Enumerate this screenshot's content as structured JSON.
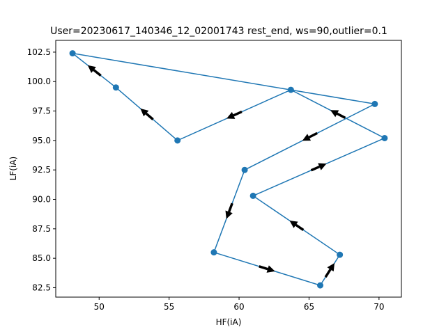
{
  "chart_data": {
    "type": "line",
    "title": "User=20230617_140346_12_02001743 rest_end, ws=90,outlier=0.1",
    "xlabel": "HF(iA)",
    "ylabel": "LF(iA)",
    "xlim": [
      46.9,
      71.6
    ],
    "ylim": [
      81.7,
      103.5
    ],
    "xticks": [
      50,
      55,
      60,
      65,
      70
    ],
    "xtick_labels": [
      "50",
      "55",
      "60",
      "65",
      "70"
    ],
    "yticks": [
      82.5,
      85.0,
      87.5,
      90.0,
      92.5,
      95.0,
      97.5,
      100.0,
      102.5
    ],
    "ytick_labels": [
      "82.5",
      "85.0",
      "87.5",
      "90.0",
      "92.5",
      "95.0",
      "97.5",
      "100.0",
      "102.5"
    ],
    "grid": false,
    "series_color": "#1f77b4",
    "arrow_color": "#000000",
    "series": [
      {
        "x": [
          69.7,
          48.1,
          51.2,
          55.6,
          63.7,
          70.4,
          61.0,
          67.2,
          65.8,
          58.2,
          60.4,
          69.7
        ],
        "y": [
          98.1,
          102.4,
          99.5,
          95.0,
          99.3,
          95.2,
          90.3,
          85.3,
          82.7,
          85.5,
          92.5,
          98.1
        ]
      }
    ],
    "arrows": [
      {
        "from": [
          51.2,
          99.5
        ],
        "to": [
          48.1,
          102.4
        ]
      },
      {
        "from": [
          55.6,
          95.0
        ],
        "to": [
          51.2,
          99.5
        ]
      },
      {
        "from": [
          63.7,
          99.3
        ],
        "to": [
          55.6,
          95.0
        ]
      },
      {
        "from": [
          70.4,
          95.2
        ],
        "to": [
          63.7,
          99.3
        ]
      },
      {
        "from": [
          69.7,
          98.1
        ],
        "to": [
          60.4,
          92.5
        ]
      },
      {
        "from": [
          61.0,
          90.3
        ],
        "to": [
          70.4,
          95.2
        ]
      },
      {
        "from": [
          67.2,
          85.3
        ],
        "to": [
          61.0,
          90.3
        ]
      },
      {
        "from": [
          65.8,
          82.7
        ],
        "to": [
          67.2,
          85.3
        ]
      },
      {
        "from": [
          58.2,
          85.5
        ],
        "to": [
          65.8,
          82.7
        ]
      },
      {
        "from": [
          60.4,
          92.5
        ],
        "to": [
          58.2,
          85.5
        ]
      }
    ]
  }
}
